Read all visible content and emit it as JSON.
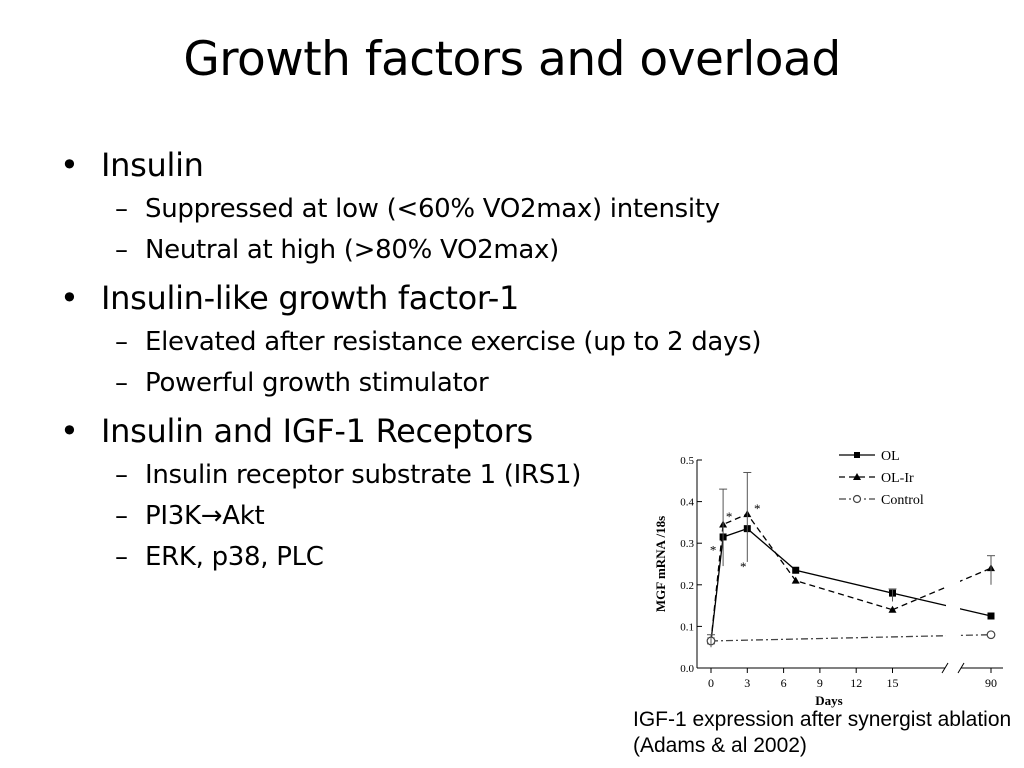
{
  "title": "Growth factors and overload",
  "bullets": [
    {
      "text": "Insulin",
      "subs": [
        "Suppressed at low (<60% VO2max) intensity",
        "Neutral at high (>80% VO2max)"
      ]
    },
    {
      "text": "Insulin-like growth factor-1",
      "subs": [
        "Elevated after resistance exercise (up to 2 days)",
        "Powerful growth stimulator"
      ]
    },
    {
      "text": "Insulin and IGF-1 Receptors",
      "subs": [
        "Insulin receptor substrate 1 (IRS1)",
        "PI3K→Akt",
        "ERK, p38, PLC"
      ]
    }
  ],
  "caption": "IGF-1 expression after synergist ablation (Adams & al 2002)",
  "chart_data": {
    "type": "line",
    "title": "",
    "xlabel": "Days",
    "ylabel": "MGF mRNA /18s",
    "ylim": [
      0,
      0.5
    ],
    "yticks": [
      "0.0",
      "0.1",
      "0.2",
      "0.3",
      "0.4",
      "0.5"
    ],
    "xticks": [
      "0",
      "3",
      "6",
      "9",
      "12",
      "15",
      "90"
    ],
    "axis_break": "between 15 and 90",
    "legend_position": "top-right",
    "series": [
      {
        "name": "OL",
        "style": "solid",
        "marker": "filled-square",
        "color": "#000000",
        "x": [
          0,
          1,
          3,
          7,
          15,
          90
        ],
        "y": [
          0.065,
          0.315,
          0.335,
          0.235,
          0.18,
          0.125
        ]
      },
      {
        "name": "OL-Ir",
        "style": "dashed",
        "marker": "filled-triangle",
        "color": "#000000",
        "x": [
          0,
          1,
          3,
          7,
          15,
          90
        ],
        "y": [
          0.065,
          0.345,
          0.37,
          0.21,
          0.14,
          0.24
        ]
      },
      {
        "name": "Control",
        "style": "dash-dot",
        "marker": "open-circle",
        "color": "#444444",
        "x": [
          0,
          90
        ],
        "y": [
          0.065,
          0.08
        ]
      }
    ],
    "annotations": [
      "*",
      "*",
      "*",
      "*"
    ]
  }
}
